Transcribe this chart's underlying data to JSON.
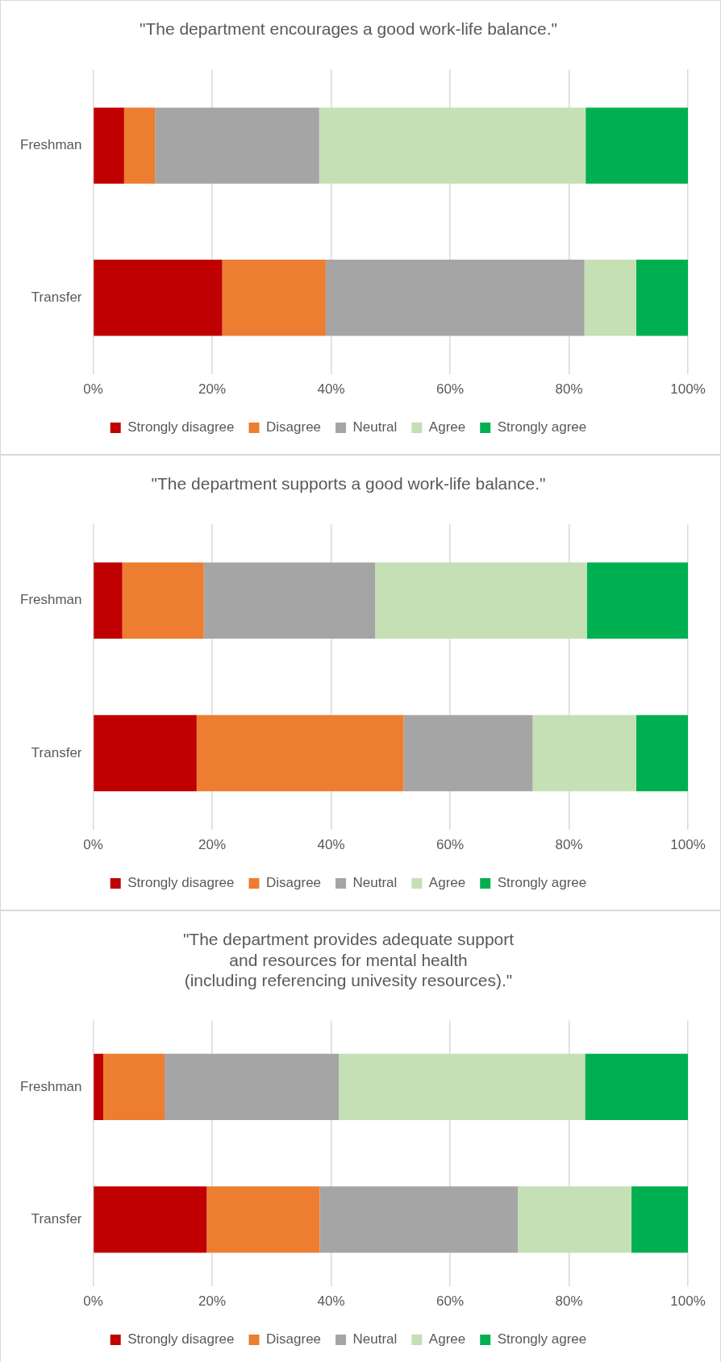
{
  "chart_data": [
    {
      "type": "bar",
      "title": "\"The department encourages a good work-life balance.\"",
      "orientation": "horizontal",
      "stacked": true,
      "categories": [
        "Freshman",
        "Transfer"
      ],
      "series": [
        {
          "name": "Strongly disagree",
          "color": "#c00000",
          "values": [
            5.2,
            21.7
          ]
        },
        {
          "name": "Disagree",
          "color": "#ed7d31",
          "values": [
            5.2,
            17.4
          ]
        },
        {
          "name": "Neutral",
          "color": "#a5a5a5",
          "values": [
            27.6,
            43.5
          ]
        },
        {
          "name": "Agree",
          "color": "#c5e0b4",
          "values": [
            44.8,
            8.7
          ]
        },
        {
          "name": "Strongly agree",
          "color": "#00b050",
          "values": [
            17.2,
            8.7
          ]
        }
      ],
      "xlim": [
        0,
        100
      ],
      "xticks": [
        {
          "value": 0,
          "label": "0%"
        },
        {
          "value": 20,
          "label": "20%"
        },
        {
          "value": 40,
          "label": "40%"
        },
        {
          "value": 60,
          "label": "60%"
        },
        {
          "value": 80,
          "label": "80%"
        },
        {
          "value": 100,
          "label": "100%"
        }
      ],
      "grid": "x",
      "legend": "bottom"
    },
    {
      "type": "bar",
      "title": "\"The department supports a good work-life balance.\"",
      "orientation": "horizontal",
      "stacked": true,
      "categories": [
        "Freshman",
        "Transfer"
      ],
      "series": [
        {
          "name": "Strongly disagree",
          "color": "#c00000",
          "values": [
            4.9,
            17.4
          ]
        },
        {
          "name": "Disagree",
          "color": "#ed7d31",
          "values": [
            13.7,
            34.8
          ]
        },
        {
          "name": "Neutral",
          "color": "#a5a5a5",
          "values": [
            28.8,
            21.7
          ]
        },
        {
          "name": "Agree",
          "color": "#c5e0b4",
          "values": [
            35.6,
            17.4
          ]
        },
        {
          "name": "Strongly agree",
          "color": "#00b050",
          "values": [
            17.0,
            8.7
          ]
        }
      ],
      "xlim": [
        0,
        100
      ],
      "xticks": [
        {
          "value": 0,
          "label": "0%"
        },
        {
          "value": 20,
          "label": "20%"
        },
        {
          "value": 40,
          "label": "40%"
        },
        {
          "value": 60,
          "label": "60%"
        },
        {
          "value": 80,
          "label": "80%"
        },
        {
          "value": 100,
          "label": "100%"
        }
      ],
      "grid": "x",
      "legend": "bottom"
    },
    {
      "type": "bar",
      "title": "\"The department provides adequate support\nand resources for mental health\n(including referencing univesity resources).\"",
      "orientation": "horizontal",
      "stacked": true,
      "categories": [
        "Freshman",
        "Transfer"
      ],
      "series": [
        {
          "name": "Strongly disagree",
          "color": "#c00000",
          "values": [
            1.7,
            19.1
          ]
        },
        {
          "name": "Disagree",
          "color": "#ed7d31",
          "values": [
            10.3,
            19.0
          ]
        },
        {
          "name": "Neutral",
          "color": "#a5a5a5",
          "values": [
            29.3,
            33.3
          ]
        },
        {
          "name": "Agree",
          "color": "#c5e0b4",
          "values": [
            41.4,
            19.1
          ]
        },
        {
          "name": "Strongly agree",
          "color": "#00b050",
          "values": [
            17.3,
            9.5
          ]
        }
      ],
      "xlim": [
        0,
        100
      ],
      "xticks": [
        {
          "value": 0,
          "label": "0%"
        },
        {
          "value": 20,
          "label": "20%"
        },
        {
          "value": 40,
          "label": "40%"
        },
        {
          "value": 60,
          "label": "60%"
        },
        {
          "value": 80,
          "label": "80%"
        },
        {
          "value": 100,
          "label": "100%"
        }
      ],
      "grid": "x",
      "legend": "bottom"
    }
  ]
}
